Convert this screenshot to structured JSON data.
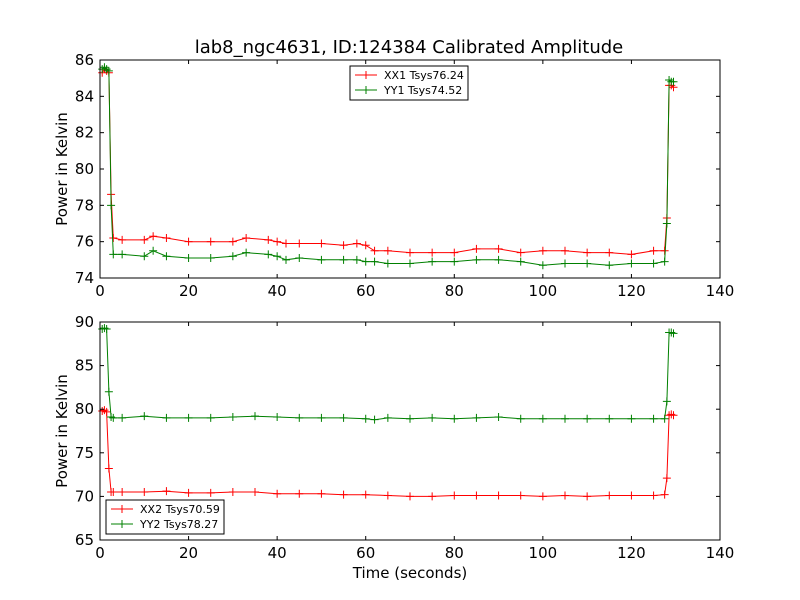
{
  "figure": {
    "title": "lab8_ngc4631, ID:124384 Calibrated Amplitude",
    "xlabel": "Time (seconds)"
  },
  "colors": {
    "red": "#ff0000",
    "green": "#008000"
  },
  "chart_data": [
    {
      "type": "line",
      "ylabel": "Power in Kelvin",
      "xlim": [
        0,
        140
      ],
      "ylim": [
        74,
        86
      ],
      "xticks": [
        0,
        20,
        40,
        60,
        80,
        100,
        120,
        140
      ],
      "yticks": [
        74,
        76,
        78,
        80,
        82,
        84,
        86
      ],
      "legend": "top-center",
      "grid": false,
      "series": [
        {
          "name": "XX1 Tsys76.24",
          "color": "#ff0000",
          "x": [
            0.5,
            1.0,
            1.5,
            2.0,
            2.5,
            3.0,
            5,
            10,
            12,
            15,
            20,
            25,
            30,
            33,
            38,
            40,
            42,
            45,
            50,
            55,
            58,
            60,
            62,
            65,
            70,
            75,
            80,
            85,
            90,
            95,
            100,
            105,
            110,
            115,
            120,
            125,
            127.5,
            128.0,
            128.5,
            129.0,
            129.5
          ],
          "y": [
            85.3,
            85.5,
            85.4,
            85.3,
            78.6,
            76.2,
            76.1,
            76.1,
            76.3,
            76.2,
            76.0,
            76.0,
            76.0,
            76.2,
            76.1,
            76.0,
            75.9,
            75.9,
            75.9,
            75.8,
            75.9,
            75.8,
            75.5,
            75.5,
            75.4,
            75.4,
            75.4,
            75.6,
            75.6,
            75.4,
            75.5,
            75.5,
            75.4,
            75.4,
            75.3,
            75.5,
            75.5,
            77.3,
            84.6,
            84.6,
            84.5
          ]
        },
        {
          "name": "YY1 Tsys74.52",
          "color": "#008000",
          "x": [
            0.5,
            1.0,
            1.5,
            2.0,
            2.5,
            3.0,
            5,
            10,
            12,
            15,
            20,
            25,
            30,
            33,
            38,
            40,
            42,
            45,
            50,
            55,
            58,
            60,
            62,
            65,
            70,
            75,
            80,
            85,
            90,
            95,
            100,
            105,
            110,
            115,
            120,
            125,
            127.5,
            128.0,
            128.5,
            129.0,
            129.5
          ],
          "y": [
            85.5,
            85.6,
            85.5,
            85.4,
            78.0,
            75.3,
            75.3,
            75.2,
            75.5,
            75.2,
            75.1,
            75.1,
            75.2,
            75.4,
            75.3,
            75.2,
            75.0,
            75.1,
            75.0,
            75.0,
            75.0,
            74.9,
            74.9,
            74.8,
            74.8,
            74.9,
            74.9,
            75.0,
            75.0,
            74.9,
            74.7,
            74.8,
            74.8,
            74.7,
            74.8,
            74.8,
            74.9,
            77.0,
            84.9,
            84.8,
            84.8
          ]
        }
      ]
    },
    {
      "type": "line",
      "ylabel": "Power in Kelvin",
      "xlim": [
        0,
        140
      ],
      "ylim": [
        65,
        90
      ],
      "xticks": [
        0,
        20,
        40,
        60,
        80,
        100,
        120,
        140
      ],
      "yticks": [
        65,
        70,
        75,
        80,
        85,
        90
      ],
      "legend": "bottom-left",
      "grid": false,
      "series": [
        {
          "name": "XX2 Tsys70.59",
          "color": "#ff0000",
          "x": [
            0.5,
            1.0,
            1.5,
            2.0,
            2.5,
            3.0,
            5,
            10,
            15,
            20,
            25,
            30,
            35,
            40,
            45,
            50,
            55,
            60,
            65,
            70,
            75,
            80,
            85,
            90,
            95,
            100,
            105,
            110,
            115,
            120,
            125,
            127.5,
            128.0,
            128.5,
            129.0,
            129.5
          ],
          "y": [
            79.8,
            79.9,
            79.7,
            73.2,
            70.5,
            70.5,
            70.5,
            70.5,
            70.6,
            70.4,
            70.4,
            70.5,
            70.5,
            70.3,
            70.3,
            70.3,
            70.2,
            70.2,
            70.1,
            70.0,
            70.0,
            70.1,
            70.1,
            70.1,
            70.1,
            70.0,
            70.1,
            70.0,
            70.1,
            70.1,
            70.1,
            70.2,
            72.1,
            79.3,
            79.4,
            79.3
          ]
        },
        {
          "name": "YY2 Tsys78.27",
          "color": "#008000",
          "x": [
            0.5,
            1.0,
            1.5,
            2.0,
            2.5,
            3.0,
            5,
            10,
            15,
            20,
            25,
            30,
            35,
            40,
            45,
            50,
            55,
            60,
            62,
            65,
            70,
            75,
            80,
            85,
            90,
            95,
            100,
            105,
            110,
            115,
            120,
            125,
            127.5,
            128.0,
            128.5,
            129.0,
            129.5
          ],
          "y": [
            89.2,
            89.3,
            89.2,
            82.0,
            79.1,
            79.0,
            79.0,
            79.2,
            79.0,
            79.0,
            79.0,
            79.1,
            79.2,
            79.1,
            79.0,
            79.0,
            79.0,
            78.9,
            78.8,
            79.0,
            78.9,
            79.0,
            78.9,
            79.0,
            79.1,
            78.9,
            78.9,
            78.9,
            78.9,
            78.9,
            78.9,
            78.9,
            78.9,
            80.9,
            88.8,
            88.8,
            88.7
          ]
        }
      ]
    }
  ]
}
